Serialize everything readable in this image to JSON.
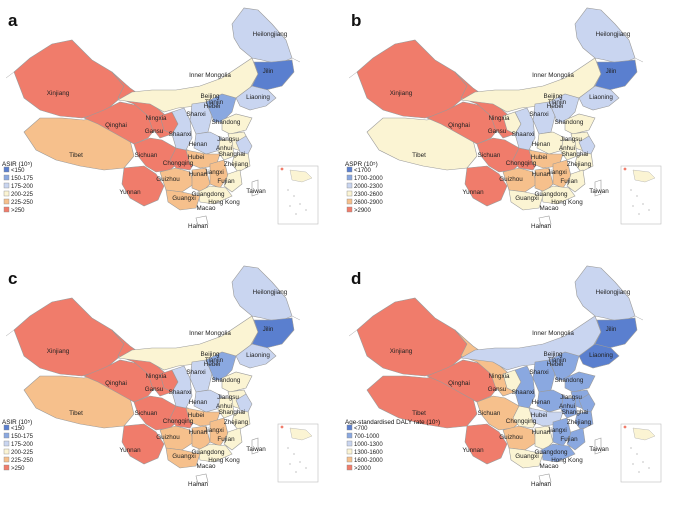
{
  "palettes": {
    "blue_dark": "#5a7fcf",
    "blue_mid": "#8aa8e0",
    "blue_light": "#c9d5f0",
    "cream": "#fbf4d3",
    "orange": "#f6c08c",
    "red": "#f07c6b"
  },
  "panels": [
    {
      "label": "a",
      "legend_title": "ASIR (10⁵)",
      "legend": [
        {
          "text": "<150",
          "color": "#5a7fcf"
        },
        {
          "text": "150-175",
          "color": "#8aa8e0"
        },
        {
          "text": "175-200",
          "color": "#c9d5f0"
        },
        {
          "text": "200-225",
          "color": "#fbf4d3"
        },
        {
          "text": "225-250",
          "color": "#f6c08c"
        },
        {
          "text": ">250",
          "color": "#f07c6b"
        }
      ],
      "colors": {
        "xinjiang": "#f07c6b",
        "tibet": "#f6c08c",
        "qinghai": "#f07c6b",
        "gansu": "#f07c6b",
        "inner_mongolia": "#fbf4d3",
        "heilongjiang": "#c9d5f0",
        "jilin": "#5a7fcf",
        "liaoning": "#c9d5f0",
        "sichuan": "#f07c6b",
        "yunnan": "#f07c6b",
        "guizhou": "#f6c08c",
        "chongqing": "#f07c6b",
        "ningxia": "#f07c6b",
        "shaanxi": "#c9d5f0",
        "shanxi": "#c9d5f0",
        "henan": "#c9d5f0",
        "hebei": "#8aa8e0",
        "shandong": "#fbf4d3",
        "jiangsu": "#fbf4d3",
        "anhui": "#fbf4d3",
        "hubei": "#f6c08c",
        "hunan": "#f6c08c",
        "jiangxi": "#f6c08c",
        "zhejiang": "#fbf4d3",
        "fujian": "#fbf4d3",
        "guangdong": "#fbf4d3",
        "guangxi": "#f6c08c",
        "hainan": "#ffffff",
        "taiwan": "#ffffff",
        "east_coast": "#c9d5f0"
      }
    },
    {
      "label": "b",
      "legend_title": "ASPR (10⁵)",
      "legend": [
        {
          "text": "<1700",
          "color": "#5a7fcf"
        },
        {
          "text": "1700-2000",
          "color": "#8aa8e0"
        },
        {
          "text": "2000-2300",
          "color": "#c9d5f0"
        },
        {
          "text": "2300-2600",
          "color": "#fbf4d3"
        },
        {
          "text": "2600-2900",
          "color": "#f6c08c"
        },
        {
          "text": ">2900",
          "color": "#f07c6b"
        }
      ],
      "colors": {
        "xinjiang": "#f07c6b",
        "tibet": "#fbf4d3",
        "qinghai": "#f07c6b",
        "gansu": "#f07c6b",
        "inner_mongolia": "#fbf4d3",
        "heilongjiang": "#c9d5f0",
        "jilin": "#5a7fcf",
        "liaoning": "#c9d5f0",
        "sichuan": "#f07c6b",
        "yunnan": "#f07c6b",
        "guizhou": "#f6c08c",
        "chongqing": "#f07c6b",
        "ningxia": "#fbf4d3",
        "shaanxi": "#c9d5f0",
        "shanxi": "#c9d5f0",
        "henan": "#fbf4d3",
        "hebei": "#c9d5f0",
        "shandong": "#fbf4d3",
        "jiangsu": "#fbf4d3",
        "anhui": "#fbf4d3",
        "hubei": "#f6c08c",
        "hunan": "#f6c08c",
        "jiangxi": "#f6c08c",
        "zhejiang": "#fbf4d3",
        "fujian": "#fbf4d3",
        "guangdong": "#fbf4d3",
        "guangxi": "#fbf4d3",
        "hainan": "#ffffff",
        "taiwan": "#ffffff",
        "east_coast": "#c9d5f0"
      }
    },
    {
      "label": "c",
      "legend_title": "ASIR (10⁵)",
      "legend": [
        {
          "text": "<150",
          "color": "#5a7fcf"
        },
        {
          "text": "150-175",
          "color": "#8aa8e0"
        },
        {
          "text": "175-200",
          "color": "#c9d5f0"
        },
        {
          "text": "200-225",
          "color": "#fbf4d3"
        },
        {
          "text": "225-250",
          "color": "#f6c08c"
        },
        {
          "text": ">250",
          "color": "#f07c6b"
        }
      ],
      "colors": {
        "xinjiang": "#f07c6b",
        "tibet": "#f6c08c",
        "qinghai": "#f07c6b",
        "gansu": "#f07c6b",
        "inner_mongolia": "#fbf4d3",
        "heilongjiang": "#c9d5f0",
        "jilin": "#5a7fcf",
        "liaoning": "#c9d5f0",
        "sichuan": "#f07c6b",
        "yunnan": "#f07c6b",
        "guizhou": "#f6c08c",
        "chongqing": "#f07c6b",
        "ningxia": "#f07c6b",
        "shaanxi": "#c9d5f0",
        "shanxi": "#c9d5f0",
        "henan": "#c9d5f0",
        "hebei": "#8aa8e0",
        "shandong": "#fbf4d3",
        "jiangsu": "#fbf4d3",
        "anhui": "#fbf4d3",
        "hubei": "#f6c08c",
        "hunan": "#f6c08c",
        "jiangxi": "#f6c08c",
        "zhejiang": "#fbf4d3",
        "fujian": "#fbf4d3",
        "guangdong": "#fbf4d3",
        "guangxi": "#f6c08c",
        "hainan": "#ffffff",
        "taiwan": "#ffffff",
        "east_coast": "#c9d5f0"
      }
    },
    {
      "label": "d",
      "legend_title": "Age-standardised DALY rate (10⁵)",
      "legend": [
        {
          "text": "<700",
          "color": "#5a7fcf"
        },
        {
          "text": "700-1000",
          "color": "#8aa8e0"
        },
        {
          "text": "1000-1300",
          "color": "#c9d5f0"
        },
        {
          "text": "1300-1600",
          "color": "#fbf4d3"
        },
        {
          "text": "1600-2000",
          "color": "#f6c08c"
        },
        {
          "text": ">2000",
          "color": "#f07c6b"
        }
      ],
      "colors": {
        "xinjiang": "#f07c6b",
        "tibet": "#f07c6b",
        "qinghai": "#f07c6b",
        "gansu": "#f6c08c",
        "inner_mongolia": "#c9d5f0",
        "heilongjiang": "#c9d5f0",
        "jilin": "#5a7fcf",
        "liaoning": "#5a7fcf",
        "sichuan": "#f6c08c",
        "yunnan": "#f07c6b",
        "guizhou": "#f6c08c",
        "chongqing": "#fbf4d3",
        "ningxia": "#fbf4d3",
        "shaanxi": "#8aa8e0",
        "shanxi": "#8aa8e0",
        "henan": "#8aa8e0",
        "hebei": "#8aa8e0",
        "shandong": "#8aa8e0",
        "jiangsu": "#8aa8e0",
        "anhui": "#8aa8e0",
        "hubei": "#c9d5f0",
        "hunan": "#fbf4d3",
        "jiangxi": "#8aa8e0",
        "zhejiang": "#8aa8e0",
        "fujian": "#8aa8e0",
        "guangdong": "#8aa8e0",
        "guangxi": "#fbf4d3",
        "hainan": "#ffffff",
        "taiwan": "#ffffff",
        "east_coast": "#8aa8e0"
      }
    }
  ],
  "province_names": {
    "xinjiang": "Xinjiang",
    "tibet": "Tibet",
    "qinghai": "Qinghai",
    "gansu": "Gansu",
    "inner_mongolia": "Inner Mongolia",
    "heilongjiang": "Heilongjiang",
    "jilin": "Jilin",
    "liaoning": "Liaoning",
    "sichuan": "Sichuan",
    "yunnan": "Yunnan",
    "guizhou": "Guizhou",
    "chongqing": "Chongqing",
    "ningxia": "Ningxia",
    "shaanxi": "Shaanxi",
    "shanxi": "Shanxi",
    "henan": "Henan",
    "hebei": "Hebei",
    "beijing": "Beijing",
    "tianjin": "Tianjin",
    "shandong": "Shandong",
    "jiangsu": "Jiangsu",
    "anhui": "Anhui",
    "shanghai": "Shanghai",
    "hubei": "Hubei",
    "hunan": "Hunan",
    "jiangxi": "Jiangxi",
    "zhejiang": "Zhejiang",
    "fujian": "Fujian",
    "guangdong": "Guangdong",
    "guangxi": "Guangxi",
    "hong_kong": "Hong Kong",
    "macao": "Macao",
    "hainan": "Hainan",
    "taiwan": "Taiwan"
  }
}
